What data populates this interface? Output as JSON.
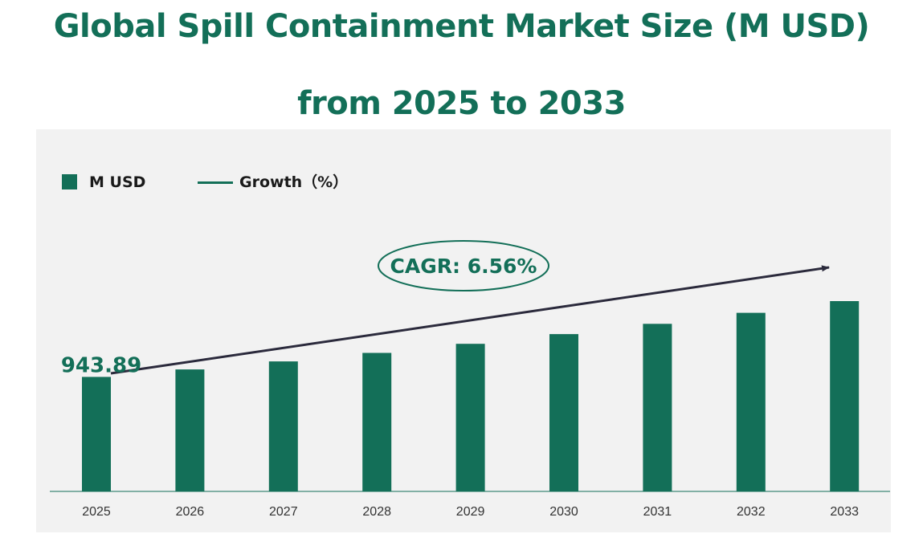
{
  "title_line1": "Global Spill Containment Market Size (M USD)",
  "title_line2": "from 2025 to 2033",
  "colors": {
    "accent": "#136f58",
    "panel": "#f2f2f2",
    "arrow": "#2b2a3c",
    "text": "#1a1a1a"
  },
  "legend": {
    "bar_label": "M USD",
    "line_label": "Growth（%）"
  },
  "cagr": {
    "label": "CAGR: 6.56%"
  },
  "chart_data": {
    "type": "bar",
    "categories": [
      "2025",
      "2026",
      "2027",
      "2028",
      "2029",
      "2030",
      "2031",
      "2032",
      "2033"
    ],
    "series": [
      {
        "name": "M USD",
        "values": [
          943.89,
          1005.81,
          1071.79,
          1142.1,
          1217.02,
          1296.86,
          1381.93,
          1472.59,
          1569.19
        ]
      }
    ],
    "data_labels": [
      {
        "category": "2025",
        "text": "943.89"
      }
    ],
    "annotation": "CAGR: 6.56%",
    "ylim": [
      0,
      1650
    ],
    "grid": false,
    "legend_position": "top-left",
    "xlabel": "",
    "ylabel": ""
  }
}
